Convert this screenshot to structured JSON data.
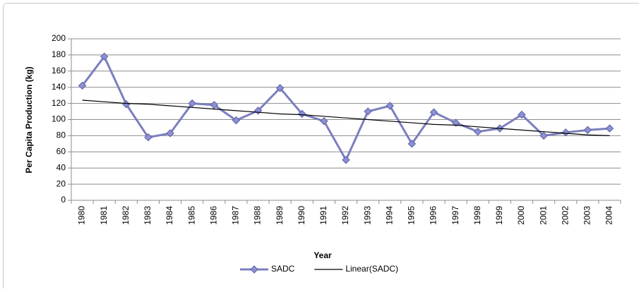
{
  "chart_data": {
    "type": "line",
    "x_label": "Year",
    "y_label": "Per Capita Production (kg)",
    "categories": [
      "1980",
      "1981",
      "1982",
      "1983",
      "1984",
      "1985",
      "1986",
      "1987",
      "1988",
      "1989",
      "1990",
      "1991",
      "1992",
      "1993",
      "1994",
      "1995",
      "1996",
      "1997",
      "1998",
      "1999",
      "2000",
      "2001",
      "2002",
      "2003",
      "2004"
    ],
    "series": [
      {
        "name": "SADC",
        "color": "#7b7fbe",
        "marker": "diamond",
        "values": [
          142,
          178,
          119,
          78,
          83,
          120,
          118,
          99,
          111,
          139,
          107,
          98,
          50,
          110,
          117,
          70,
          109,
          96,
          85,
          89,
          106,
          80,
          84,
          87,
          89
        ]
      },
      {
        "name": "Linear(SADC)",
        "color": "#000000",
        "marker": "none",
        "values": [
          124,
          122,
          120,
          119,
          117,
          115,
          113,
          111,
          109,
          107,
          106,
          104,
          102,
          100,
          98,
          96,
          94,
          93,
          91,
          89,
          87,
          85,
          83,
          81,
          80
        ]
      }
    ],
    "ylim": [
      0,
      200
    ],
    "yticks": [
      0,
      20,
      40,
      60,
      80,
      100,
      120,
      140,
      160,
      180,
      200
    ],
    "grid": true,
    "legend": "bottom"
  }
}
